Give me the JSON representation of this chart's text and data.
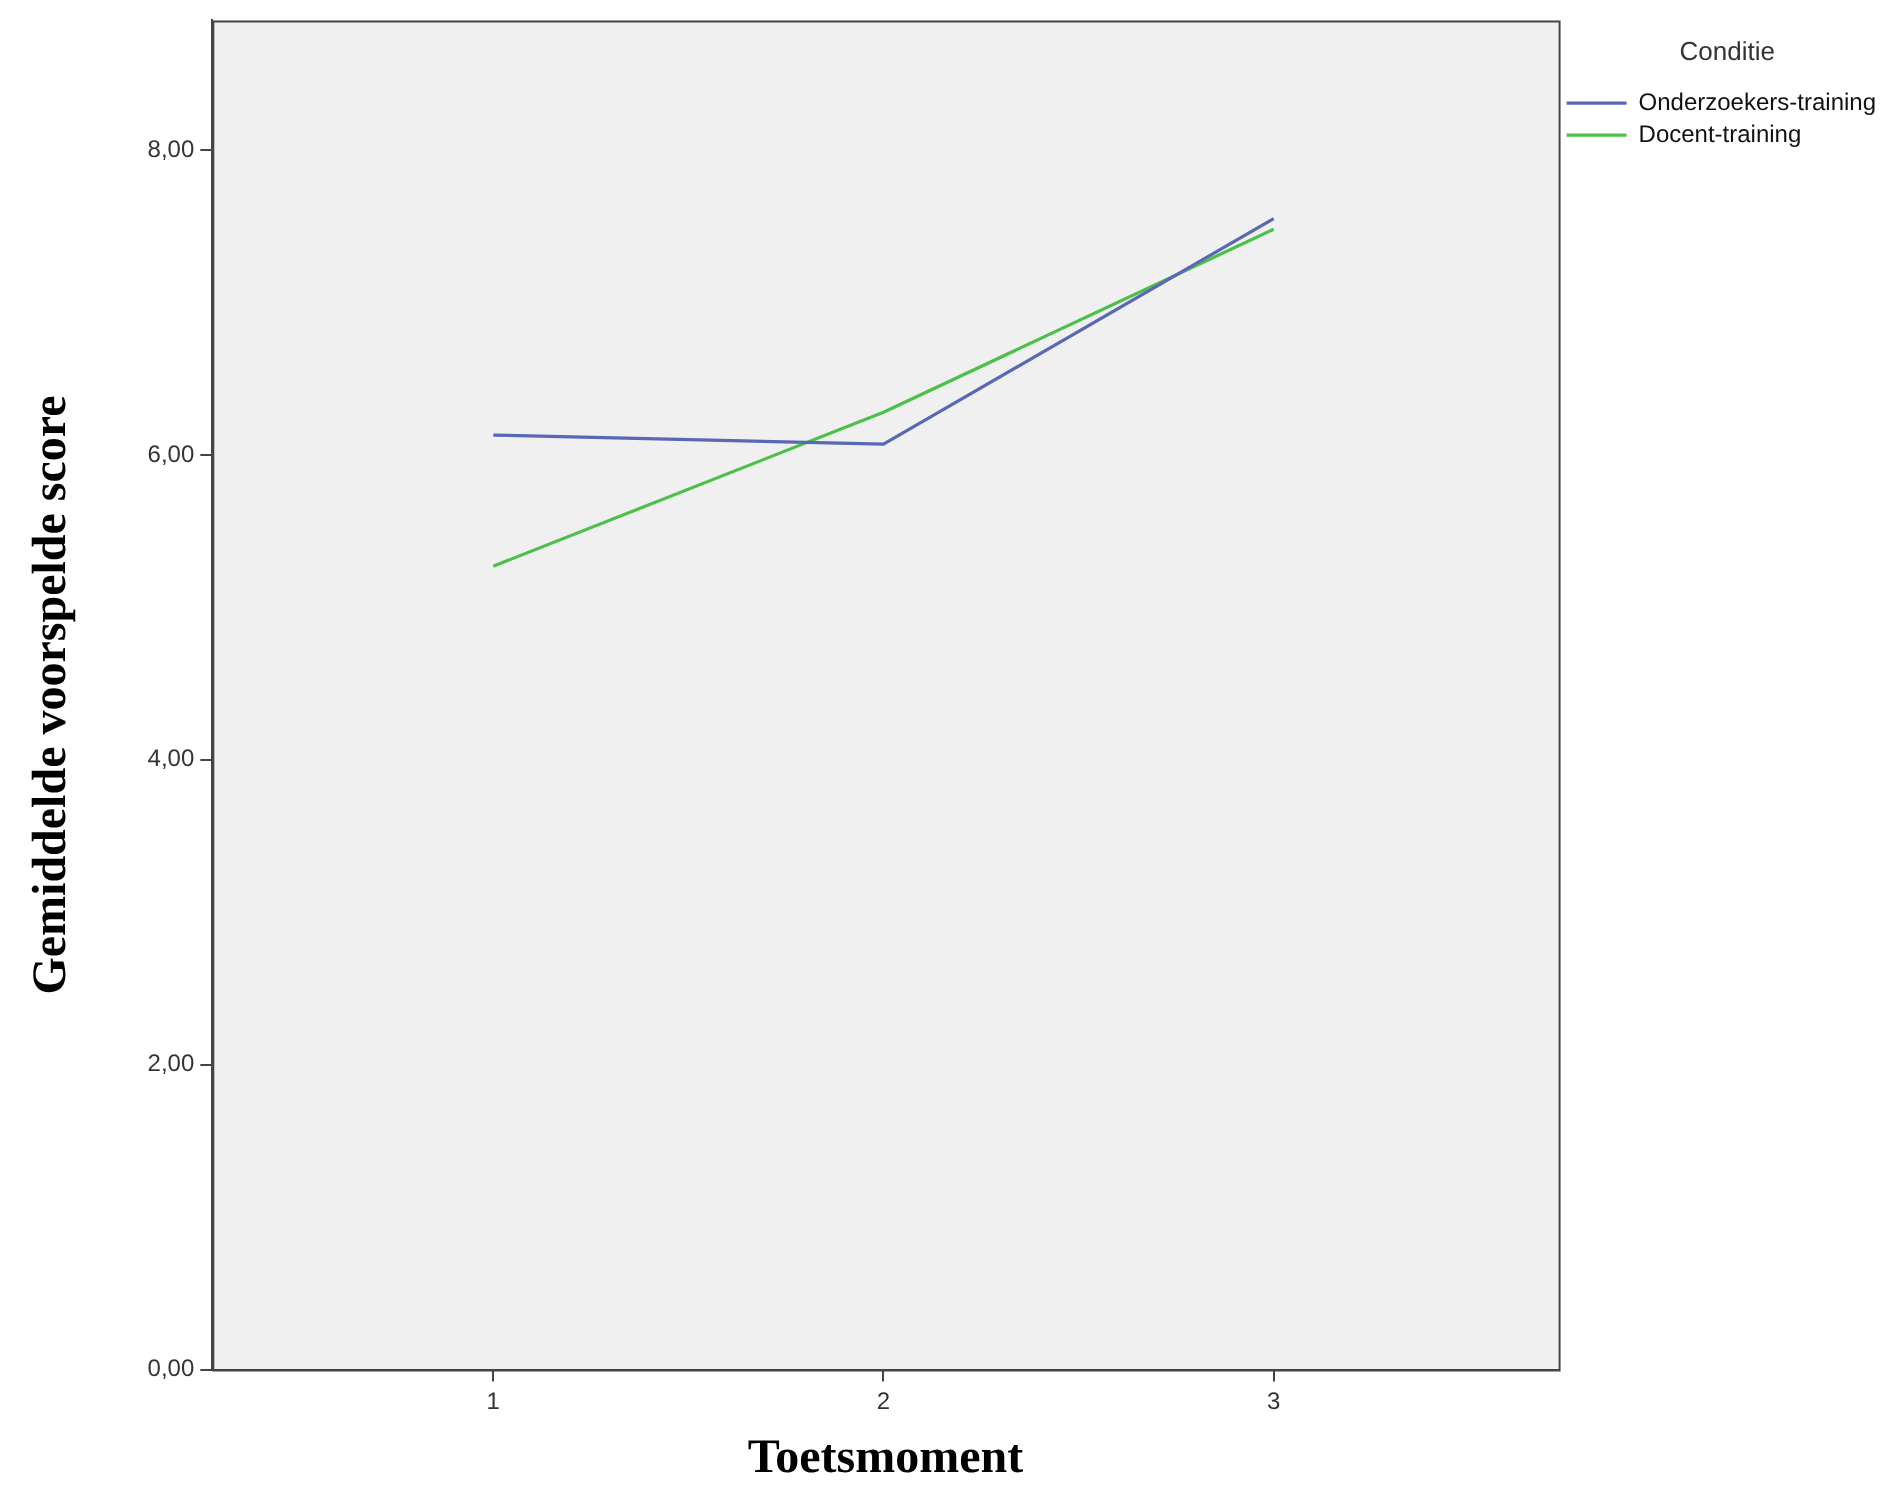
{
  "chart_data": {
    "type": "line",
    "xlabel": "Toetsmoment",
    "ylabel": "Gemiddelde voorspelde score",
    "legend_title": "Conditie",
    "legend": "top right",
    "x": [
      1,
      2,
      3
    ],
    "xlim": [
      0.28,
      3.73
    ],
    "xticks": [
      1,
      2,
      3
    ],
    "ylim": [
      0,
      8.85
    ],
    "yticks": [
      {
        "value": 0,
        "label": "0,00"
      },
      {
        "value": 2,
        "label": "2,00"
      },
      {
        "value": 4,
        "label": "4,00"
      },
      {
        "value": 6,
        "label": "6,00"
      },
      {
        "value": 8,
        "label": "8,00"
      }
    ],
    "grid": false,
    "marker": "none",
    "line_style": "solid",
    "series": [
      {
        "name": "Onderzoekers-training",
        "color": "#5a67b5",
        "values": [
          6.13,
          6.07,
          7.55
        ]
      },
      {
        "name": "Docent-training",
        "color": "#4cc04a",
        "values": [
          5.27,
          6.28,
          7.48
        ]
      }
    ]
  }
}
